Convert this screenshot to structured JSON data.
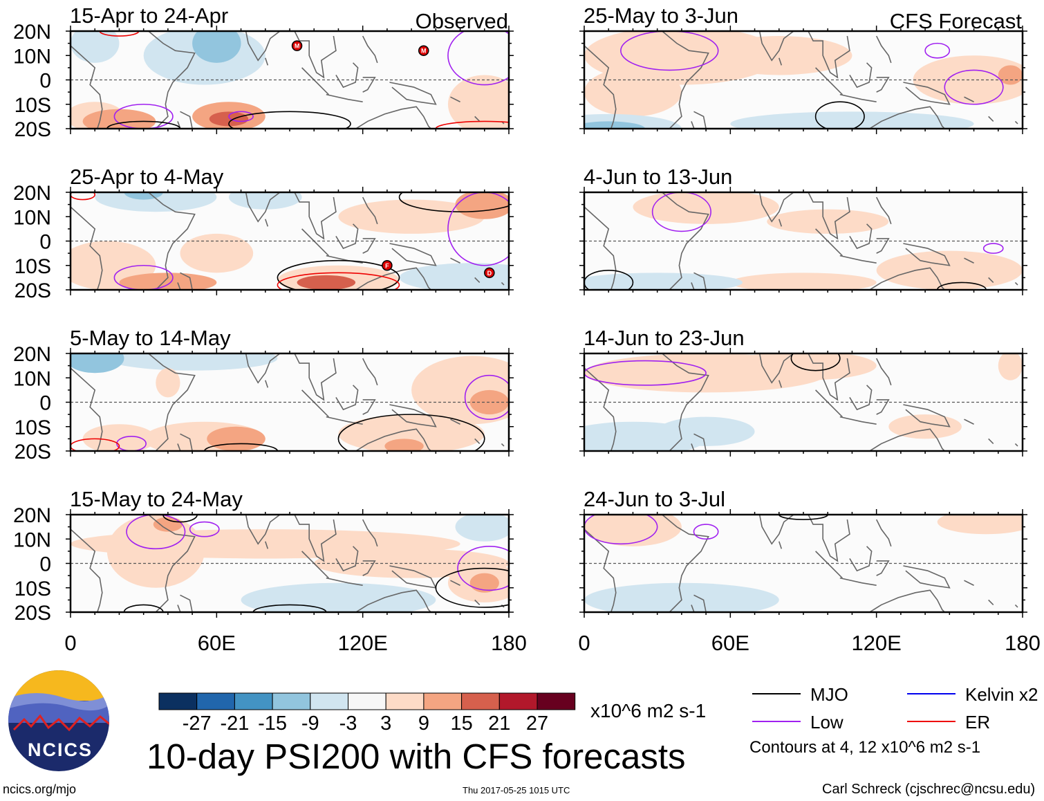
{
  "title": "10-day PSI200 with CFS forecasts",
  "footer": {
    "left": "ncics.org/mjo",
    "timestamp": "Thu 2017-05-25 1015 UTC",
    "author": "Carl Schreck (cjschrec@ncsu.edu)"
  },
  "logo_text": "NCICS",
  "colorbar": {
    "colors": [
      "#0b3060",
      "#2166ac",
      "#4393c3",
      "#92c5de",
      "#d1e5f0",
      "#f7f7f7",
      "#fddbc7",
      "#f4a582",
      "#d6604d",
      "#b2182b",
      "#67001f"
    ],
    "labels": [
      "-27",
      "-21",
      "-15",
      "-9",
      "-3",
      "3",
      "9",
      "15",
      "21",
      "27"
    ],
    "units": "x10^6 m2 s-1"
  },
  "legend": {
    "items": [
      {
        "label": "MJO",
        "color": "#000000"
      },
      {
        "label": "Kelvin x2",
        "color": "#0000ee"
      },
      {
        "label": "Low",
        "color": "#a020f0"
      },
      {
        "label": "ER",
        "color": "#ee0000"
      }
    ],
    "note": "Contours at 4, 12 x10^6 m2 s-1"
  },
  "chart_data": {
    "type": "heatmap",
    "variable": "PSI200 anomaly",
    "xlim": [
      0,
      180
    ],
    "ylim": [
      -20,
      20
    ],
    "x_ticks": [
      "0",
      "60E",
      "120E",
      "180"
    ],
    "y_ticks": [
      "20N",
      "10N",
      "0",
      "10S",
      "20S"
    ],
    "column_labels": [
      "Observed",
      "CFS Forecast"
    ],
    "panels": [
      {
        "title": "15-Apr to 24-Apr",
        "column": 0,
        "fields": [
          [
            55,
            10,
            25,
            12,
            -5
          ],
          [
            10,
            15,
            10,
            8,
            -5
          ],
          [
            60,
            15,
            10,
            8,
            -12
          ],
          [
            10,
            -15,
            12,
            6,
            6
          ],
          [
            20,
            -17,
            15,
            5,
            12
          ],
          [
            65,
            -15,
            15,
            6,
            12
          ],
          [
            65,
            -16,
            8,
            3,
            18
          ],
          [
            170,
            -10,
            15,
            12,
            6
          ]
        ],
        "contours": [
          [
            "Low",
            70,
            -15,
            5,
            2
          ],
          [
            "Low",
            30,
            -15,
            12,
            5
          ],
          [
            "MJO",
            30,
            -20,
            15,
            3
          ],
          [
            "MJO",
            90,
            -18,
            25,
            5
          ],
          [
            "ER",
            20,
            20,
            8,
            2
          ],
          [
            "ER",
            170,
            -20,
            20,
            3
          ],
          [
            "Low",
            170,
            10,
            15,
            12
          ]
        ],
        "storms": [
          {
            "label": "M",
            "lon": 93,
            "lat": 14
          },
          {
            "label": "M",
            "lon": 145,
            "lat": 12
          }
        ]
      },
      {
        "title": "25-Apr to 4-May",
        "column": 0,
        "fields": [
          [
            35,
            18,
            25,
            6,
            -8
          ],
          [
            30,
            20,
            8,
            3,
            -15
          ],
          [
            80,
            18,
            15,
            5,
            -5
          ],
          [
            140,
            10,
            30,
            7,
            6
          ],
          [
            170,
            15,
            12,
            6,
            12
          ],
          [
            15,
            -10,
            20,
            10,
            6
          ],
          [
            40,
            -17,
            20,
            4,
            12
          ],
          [
            110,
            -16,
            25,
            6,
            6
          ],
          [
            105,
            -17,
            12,
            3,
            15
          ],
          [
            60,
            -5,
            15,
            8,
            4
          ],
          [
            165,
            -15,
            30,
            6,
            -5
          ]
        ],
        "contours": [
          [
            "MJO",
            160,
            18,
            25,
            6
          ],
          [
            "Low",
            170,
            5,
            15,
            15
          ],
          [
            "Low",
            30,
            -15,
            12,
            5
          ],
          [
            "MJO",
            110,
            -15,
            25,
            7
          ],
          [
            "ER",
            110,
            -18,
            25,
            5
          ],
          [
            "ER",
            5,
            19,
            5,
            2
          ]
        ],
        "storms": [
          {
            "label": "F",
            "lon": 130,
            "lat": -10
          },
          {
            "label": "D",
            "lon": 172,
            "lat": -13
          }
        ]
      },
      {
        "title": "5-May to 14-May",
        "column": 0,
        "fields": [
          [
            50,
            18,
            35,
            5,
            -5
          ],
          [
            10,
            18,
            12,
            6,
            -12
          ],
          [
            55,
            -15,
            25,
            7,
            6
          ],
          [
            68,
            -15,
            12,
            5,
            12
          ],
          [
            165,
            5,
            25,
            14,
            6
          ],
          [
            172,
            0,
            8,
            5,
            12
          ],
          [
            140,
            -13,
            30,
            8,
            6
          ],
          [
            137,
            -18,
            8,
            3,
            12
          ],
          [
            20,
            -15,
            15,
            6,
            6
          ],
          [
            40,
            8,
            5,
            6,
            5
          ]
        ],
        "contours": [
          [
            "Low",
            172,
            2,
            10,
            9
          ],
          [
            "MJO",
            140,
            -15,
            30,
            10
          ],
          [
            "Low",
            25,
            -17,
            6,
            3
          ],
          [
            "ER",
            10,
            -18,
            10,
            3
          ],
          [
            "MJO",
            70,
            -20,
            15,
            3
          ]
        ],
        "storms": []
      },
      {
        "title": "15-May to 24-May",
        "column": 0,
        "fields": [
          [
            80,
            8,
            80,
            6,
            5
          ],
          [
            35,
            5,
            20,
            15,
            6
          ],
          [
            40,
            16,
            6,
            3,
            12
          ],
          [
            140,
            0,
            40,
            6,
            5
          ],
          [
            170,
            -8,
            15,
            8,
            6
          ],
          [
            170,
            -8,
            6,
            4,
            12
          ],
          [
            110,
            -15,
            40,
            7,
            -5
          ],
          [
            170,
            15,
            12,
            6,
            -4
          ]
        ],
        "contours": [
          [
            "Low",
            35,
            13,
            12,
            7
          ],
          [
            "Low",
            55,
            14,
            6,
            3
          ],
          [
            "Low",
            172,
            -2,
            13,
            9
          ],
          [
            "MJO",
            170,
            -10,
            20,
            8
          ],
          [
            "MJO",
            90,
            -20,
            15,
            3
          ],
          [
            "MJO",
            45,
            20,
            7,
            3
          ],
          [
            "MJO",
            30,
            -20,
            8,
            3
          ]
        ],
        "storms": []
      },
      {
        "title": "25-May to 3-Jun",
        "column": 1,
        "fields": [
          [
            40,
            10,
            40,
            12,
            6
          ],
          [
            80,
            10,
            30,
            8,
            5
          ],
          [
            160,
            0,
            25,
            10,
            5
          ],
          [
            175,
            2,
            5,
            4,
            12
          ],
          [
            20,
            -5,
            20,
            10,
            4
          ],
          [
            10,
            -20,
            30,
            6,
            -8
          ],
          [
            10,
            -20,
            15,
            3,
            -15
          ],
          [
            110,
            -18,
            50,
            5,
            -4
          ]
        ],
        "contours": [
          [
            "Low",
            35,
            12,
            20,
            8
          ],
          [
            "Low",
            160,
            -3,
            12,
            7
          ],
          [
            "Low",
            145,
            12,
            5,
            3
          ],
          [
            "MJO",
            105,
            -15,
            10,
            6
          ]
        ],
        "storms": []
      },
      {
        "title": "4-Jun to 13-Jun",
        "column": 1,
        "fields": [
          [
            50,
            14,
            30,
            7,
            6
          ],
          [
            100,
            8,
            25,
            5,
            5
          ],
          [
            150,
            -12,
            30,
            8,
            5
          ],
          [
            90,
            -17,
            30,
            4,
            4
          ],
          [
            30,
            -17,
            35,
            4,
            -4
          ]
        ],
        "contours": [
          [
            "Low",
            40,
            12,
            12,
            8
          ],
          [
            "Low",
            168,
            -3,
            4,
            2
          ],
          [
            "MJO",
            10,
            -17,
            10,
            5
          ],
          [
            "MJO",
            155,
            -20,
            10,
            3
          ]
        ],
        "storms": []
      },
      {
        "title": "14-Jun to 23-Jun",
        "column": 1,
        "fields": [
          [
            50,
            12,
            50,
            8,
            6
          ],
          [
            90,
            15,
            30,
            6,
            6
          ],
          [
            140,
            -10,
            15,
            5,
            5
          ],
          [
            175,
            15,
            5,
            6,
            5
          ],
          [
            20,
            -15,
            30,
            7,
            -6
          ],
          [
            10,
            -18,
            12,
            4,
            -9
          ],
          [
            50,
            -12,
            20,
            6,
            -4
          ]
        ],
        "contours": [
          [
            "Low",
            25,
            12,
            25,
            5
          ],
          [
            "MJO",
            95,
            18,
            10,
            5
          ]
        ],
        "storms": []
      },
      {
        "title": "24-Jun to 3-Jul",
        "column": 1,
        "fields": [
          [
            20,
            15,
            20,
            8,
            6
          ],
          [
            165,
            17,
            20,
            5,
            5
          ],
          [
            40,
            -15,
            40,
            7,
            -4
          ]
        ],
        "contours": [
          [
            "Low",
            15,
            15,
            15,
            7
          ],
          [
            "Low",
            50,
            13,
            5,
            3
          ],
          [
            "MJO",
            90,
            20,
            10,
            2
          ]
        ],
        "storms": []
      }
    ]
  }
}
